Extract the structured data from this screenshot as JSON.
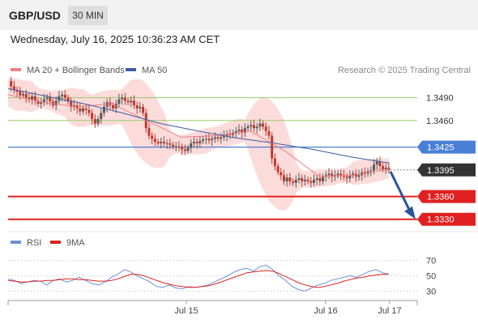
{
  "header": {
    "symbol": "GBP/USD",
    "timeframe": "30 MIN"
  },
  "datetime": "Wednesday, July 16, 2025 10:36:23 AM CET",
  "colors": {
    "price_up": "#5a5a5a",
    "price_down": "#c0392b",
    "ma20": "#f08080",
    "ma50": "#3b5ba5",
    "bollinger_fill": "#fbd5d5",
    "resistance": "#9acd6b",
    "pivot": "#4a7fd6",
    "support": "#e02020",
    "current": "#333333",
    "arrow": "#2a5599",
    "rsi": "#6c8fd8",
    "rsi_ma": "#e02020"
  },
  "chart_data": [
    {
      "type": "line",
      "name": "price",
      "ylim": [
        1.3318,
        1.3512
      ],
      "x_ticks": [
        "Jul 15",
        "Jul 16",
        "Jul 17"
      ],
      "legend": [
        {
          "label": "MA 20 + Bollinger Bands",
          "color": "#f08080"
        },
        {
          "label": "MA 50",
          "color": "#3b5ba5"
        }
      ],
      "copyright": "Research © 2025 Trading Central",
      "levels": [
        {
          "value": 1.349,
          "label": "1.3490",
          "kind": "resistance"
        },
        {
          "value": 1.346,
          "label": "1.3460",
          "kind": "resistance"
        },
        {
          "value": 1.3425,
          "label": "1.3425",
          "kind": "pivot"
        },
        {
          "value": 1.3395,
          "label": "1.3395",
          "kind": "current"
        },
        {
          "value": 1.336,
          "label": "1.3360",
          "kind": "support"
        },
        {
          "value": 1.333,
          "label": "1.3330",
          "kind": "support"
        }
      ],
      "arrow": {
        "from": 1.3395,
        "to": 1.333
      },
      "series": [
        {
          "name": "price",
          "values": [
            1.3512,
            1.3505,
            1.35,
            1.3498,
            1.3493,
            1.3495,
            1.349,
            1.3488,
            1.3492,
            1.3486,
            1.3482,
            1.3484,
            1.3488,
            1.349,
            1.3485,
            1.348,
            1.3486,
            1.3492,
            1.3494,
            1.349,
            1.3485,
            1.3478,
            1.348,
            1.3476,
            1.3472,
            1.3476,
            1.3474,
            1.347,
            1.3462,
            1.3456,
            1.3462,
            1.347,
            1.3478,
            1.3484,
            1.348,
            1.3476,
            1.3482,
            1.3488,
            1.349,
            1.3486,
            1.3484,
            1.3486,
            1.348,
            1.3476,
            1.3478,
            1.347,
            1.345,
            1.344,
            1.3436,
            1.3432,
            1.343,
            1.3432,
            1.343,
            1.343,
            1.3428,
            1.3426,
            1.3426,
            1.3425,
            1.3422,
            1.342,
            1.3424,
            1.343,
            1.3432,
            1.343,
            1.3433,
            1.3435,
            1.3436,
            1.3434,
            1.3436,
            1.3438,
            1.3436,
            1.3438,
            1.344,
            1.3442,
            1.3441,
            1.3444,
            1.3446,
            1.3448,
            1.3444,
            1.345,
            1.3452,
            1.3454,
            1.345,
            1.3452,
            1.3456,
            1.3452,
            1.3446,
            1.344,
            1.341,
            1.34,
            1.3392,
            1.3388,
            1.338,
            1.3385,
            1.338,
            1.3378,
            1.3382,
            1.3384,
            1.338,
            1.3382,
            1.338,
            1.3378,
            1.3382,
            1.3384,
            1.338,
            1.3386,
            1.3388,
            1.339,
            1.3386,
            1.3388,
            1.339,
            1.3388,
            1.3386,
            1.3384,
            1.3388,
            1.339,
            1.3386,
            1.3388,
            1.3392,
            1.339,
            1.3393,
            1.3394,
            1.3402,
            1.3406,
            1.34,
            1.3396,
            1.3398,
            1.3395
          ]
        },
        {
          "name": "MA 50",
          "values": [
            1.3502,
            1.3492,
            1.3482,
            1.347,
            1.3456,
            1.3446,
            1.3437,
            1.343,
            1.3422,
            1.3412,
            1.3404
          ]
        },
        {
          "name": "MA 20",
          "values": [
            1.3494,
            1.3484,
            1.3478,
            1.3482,
            1.346,
            1.3438,
            1.344,
            1.3446,
            1.342,
            1.3386,
            1.3388,
            1.3396
          ]
        }
      ]
    },
    {
      "type": "line",
      "name": "RSI",
      "ylim": [
        23,
        77
      ],
      "yticks": [
        70,
        50,
        30
      ],
      "legend": [
        {
          "label": "RSI",
          "color": "#6c8fd8"
        },
        {
          "label": "9MA",
          "color": "#e02020"
        }
      ],
      "series": [
        {
          "name": "RSI",
          "values": [
            46,
            44,
            40,
            42,
            44,
            43,
            38,
            44,
            46,
            42,
            44,
            48,
            44,
            40,
            38,
            42,
            48,
            52,
            58,
            55,
            50,
            46,
            42,
            36,
            35,
            38,
            34,
            33,
            36,
            35,
            36,
            38,
            42,
            46,
            50,
            55,
            58,
            60,
            56,
            62,
            64,
            58,
            50,
            44,
            36,
            32,
            30,
            34,
            38,
            40,
            44,
            46,
            48,
            50,
            48,
            52,
            56,
            58,
            54,
            52
          ]
        },
        {
          "name": "9MA",
          "values": [
            44,
            43,
            42,
            42,
            43,
            43,
            44,
            44,
            45,
            46,
            46,
            45,
            45,
            44,
            43,
            43,
            44,
            46,
            49,
            52,
            52,
            50,
            47,
            44,
            41,
            39,
            37,
            36,
            35,
            35,
            36,
            37,
            39,
            42,
            45,
            48,
            51,
            54,
            55,
            56,
            57,
            56,
            53,
            49,
            45,
            41,
            38,
            36,
            35,
            36,
            38,
            40,
            43,
            45,
            47,
            48,
            50,
            51,
            52,
            52
          ]
        }
      ]
    }
  ]
}
